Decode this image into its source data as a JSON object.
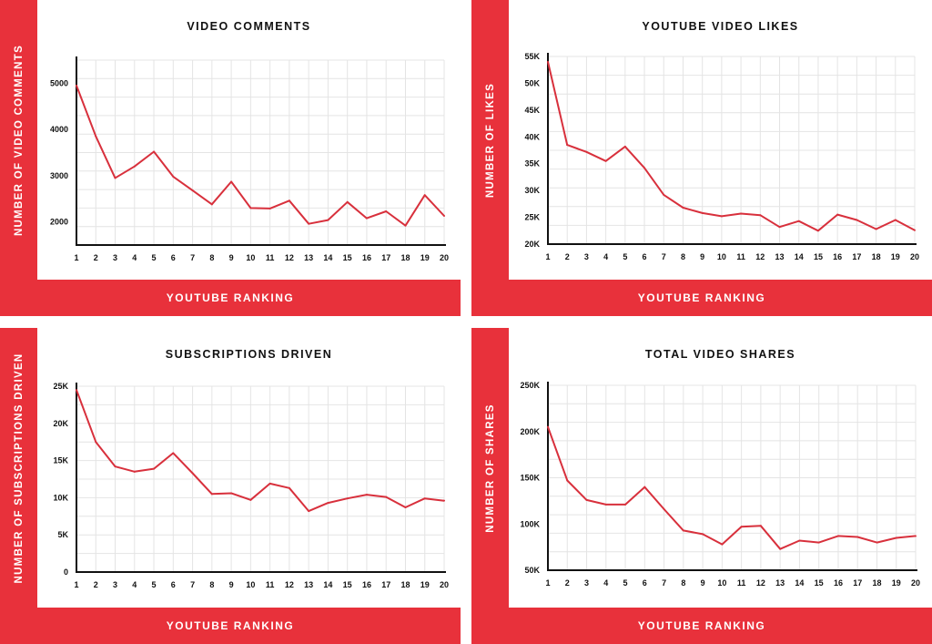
{
  "x_axis_label": "YOUTUBE RANKING",
  "chart_data": [
    {
      "type": "line",
      "title": "VIDEO COMMENTS",
      "ylabel": "NUMBER OF VIDEO COMMENTS",
      "xlabel": "YOUTUBE RANKING",
      "x": [
        1,
        2,
        3,
        4,
        5,
        6,
        7,
        8,
        9,
        10,
        11,
        12,
        13,
        14,
        15,
        16,
        17,
        18,
        19,
        20
      ],
      "values": [
        4950,
        3850,
        2950,
        3200,
        3520,
        2980,
        2680,
        2380,
        2870,
        2300,
        2290,
        2460,
        1960,
        2040,
        2430,
        2080,
        2230,
        1920,
        2580,
        2130
      ],
      "ylim": [
        1500,
        5500
      ],
      "yticks": [
        2000,
        3000,
        4000,
        5000
      ],
      "ytick_labels": [
        "2000",
        "3000",
        "4000",
        "5000"
      ],
      "grid": true
    },
    {
      "type": "line",
      "title": "YOUTUBE VIDEO LIKES",
      "ylabel": "NUMBER OF LIKES",
      "xlabel": "YOUTUBE RANKING",
      "x": [
        1,
        2,
        3,
        4,
        5,
        6,
        7,
        8,
        9,
        10,
        11,
        12,
        13,
        14,
        15,
        16,
        17,
        18,
        19,
        20
      ],
      "values": [
        54000,
        38500,
        37200,
        35500,
        38200,
        34200,
        29200,
        26800,
        25800,
        25200,
        25700,
        25400,
        23200,
        24300,
        22500,
        25500,
        24500,
        22800,
        24500,
        22600
      ],
      "ylim": [
        20000,
        55000
      ],
      "yticks": [
        20000,
        25000,
        30000,
        35000,
        40000,
        45000,
        50000,
        55000
      ],
      "ytick_labels": [
        "20K",
        "25K",
        "30K",
        "35K",
        "40K",
        "45K",
        "50K",
        "55K"
      ],
      "grid": true
    },
    {
      "type": "line",
      "title": "SUBSCRIPTIONS DRIVEN",
      "ylabel": "NUMBER OF SUBSCRIPTIONS DRIVEN",
      "xlabel": "YOUTUBE RANKING",
      "x": [
        1,
        2,
        3,
        4,
        5,
        6,
        7,
        8,
        9,
        10,
        11,
        12,
        13,
        14,
        15,
        16,
        17,
        18,
        19,
        20
      ],
      "values": [
        24500,
        17500,
        14200,
        13500,
        13900,
        16000,
        13300,
        10500,
        10600,
        9700,
        11900,
        11300,
        8200,
        9300,
        9900,
        10400,
        10100,
        8700,
        9900,
        9600
      ],
      "ylim": [
        0,
        25000
      ],
      "yticks": [
        0,
        5000,
        10000,
        15000,
        20000,
        25000
      ],
      "ytick_labels": [
        "0",
        "5K",
        "10K",
        "15K",
        "20K",
        "25K"
      ],
      "grid": true
    },
    {
      "type": "line",
      "title": "TOTAL VIDEO SHARES",
      "ylabel": "NUMBER OF SHARES",
      "xlabel": "YOUTUBE RANKING",
      "x": [
        1,
        2,
        3,
        4,
        5,
        6,
        7,
        8,
        9,
        10,
        11,
        12,
        13,
        14,
        15,
        16,
        17,
        18,
        19,
        20
      ],
      "values": [
        205000,
        147000,
        126000,
        121000,
        121000,
        140000,
        116000,
        93000,
        89000,
        78000,
        97000,
        98000,
        73000,
        82000,
        80000,
        87000,
        86000,
        80000,
        85000,
        87000
      ],
      "ylim": [
        50000,
        250000
      ],
      "yticks": [
        50000,
        100000,
        150000,
        200000,
        250000
      ],
      "ytick_labels": [
        "50K",
        "100K",
        "150K",
        "200K",
        "250K"
      ],
      "grid": true
    }
  ]
}
